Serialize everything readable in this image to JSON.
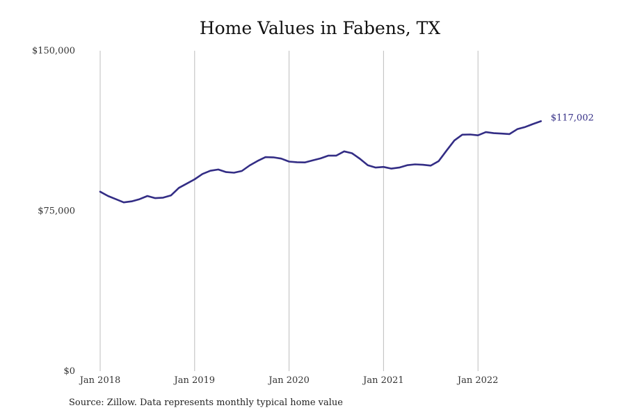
{
  "chart_data": {
    "type": "line",
    "title": "Home Values in Fabens, TX",
    "xlabel": "",
    "ylabel": "",
    "x_ticks": [
      "Jan 2018",
      "Jan 2019",
      "Jan 2020",
      "Jan 2021",
      "Jan 2022"
    ],
    "y_ticks": [
      "$0",
      "$75,000",
      "$150,000"
    ],
    "ylim": [
      0,
      150000
    ],
    "x_start": "Jan 2018",
    "x_end": "Sep 2022",
    "grid": "vertical lines at x ticks",
    "line_color": "#332d85",
    "end_label": "$117,002",
    "source": "Source: Zillow. Data represents monthly typical home value",
    "series": [
      {
        "x": [
          "2018-01",
          "2018-02",
          "2018-03",
          "2018-04",
          "2018-05",
          "2018-06",
          "2018-07",
          "2018-08",
          "2018-09",
          "2018-10",
          "2018-11",
          "2018-12",
          "2019-01",
          "2019-02",
          "2019-03",
          "2019-04",
          "2019-05",
          "2019-06",
          "2019-07",
          "2019-08",
          "2019-09",
          "2019-10",
          "2019-11",
          "2019-12",
          "2020-01",
          "2020-02",
          "2020-03",
          "2020-04",
          "2020-05",
          "2020-06",
          "2020-07",
          "2020-08",
          "2020-09",
          "2020-10",
          "2020-11",
          "2020-12",
          "2021-01",
          "2021-02",
          "2021-03",
          "2021-04",
          "2021-05",
          "2021-06",
          "2021-07",
          "2021-08",
          "2021-09",
          "2021-10",
          "2021-11",
          "2021-12",
          "2022-01",
          "2022-02",
          "2022-03",
          "2022-04",
          "2022-05",
          "2022-06",
          "2022-07",
          "2022-08",
          "2022-09"
        ],
        "values": [
          84000,
          82000,
          80500,
          79000,
          79500,
          80500,
          82000,
          81000,
          81200,
          82300,
          85800,
          87800,
          89800,
          92300,
          93800,
          94400,
          93200,
          92900,
          93700,
          96300,
          98400,
          100200,
          100100,
          99500,
          98100,
          97800,
          97700,
          98700,
          99600,
          100900,
          100900,
          102900,
          102000,
          99400,
          96400,
          95300,
          95600,
          94800,
          95300,
          96400,
          96800,
          96600,
          96200,
          98300,
          103200,
          108000,
          110700,
          110800,
          110400,
          111900,
          111400,
          111200,
          111000,
          113300,
          114300,
          115700,
          117002
        ]
      }
    ]
  }
}
